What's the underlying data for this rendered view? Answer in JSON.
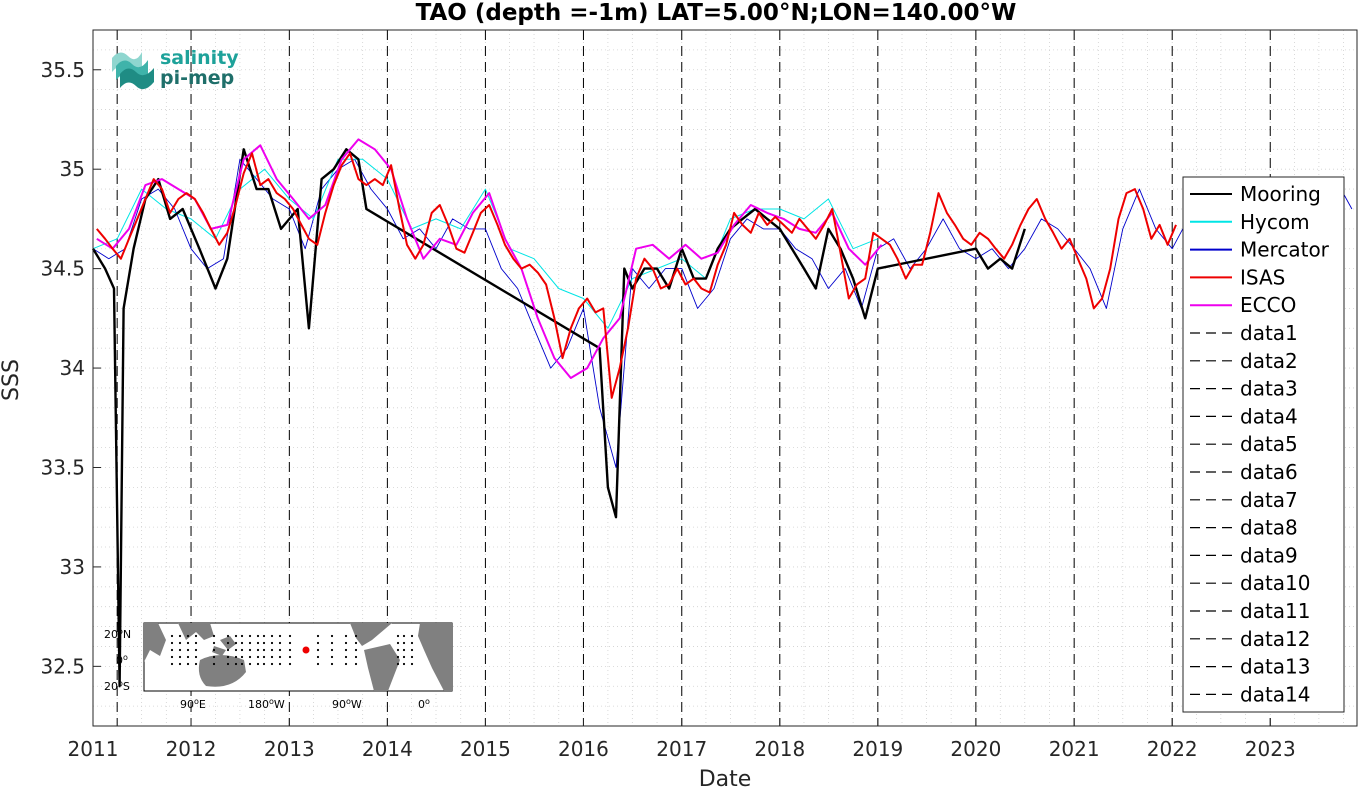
{
  "chart_data": {
    "type": "line",
    "title": "TAO (depth =-1m) LAT=5.00°N;LON=140.00°W",
    "xlabel": "Date",
    "ylabel": "SSS",
    "xlim": [
      "2011-01-01",
      "2023-11-20"
    ],
    "ylim": [
      32.2,
      35.7
    ],
    "x_ticks": [
      "2011",
      "2012",
      "2013",
      "2014",
      "2015",
      "2016",
      "2017",
      "2018",
      "2019",
      "2020",
      "2021",
      "2022",
      "2023"
    ],
    "y_ticks": [
      "32.5",
      "33",
      "33.5",
      "34",
      "34.5",
      "35",
      "35.5"
    ],
    "grid": "dotted minor grid",
    "legend_position": "right",
    "vertical_dashed_lines_at": [
      "2011-04-01",
      "2012-01-01",
      "2013-01-01",
      "2014-01-01",
      "2015-01-01",
      "2016-01-01",
      "2017-01-01",
      "2018-01-01",
      "2019-01-01",
      "2020-01-01",
      "2021-01-01",
      "2022-01-01",
      "2023-01-01"
    ],
    "series": [
      {
        "name": "Mooring",
        "color": "#000000",
        "x": [
          "2011-01-01",
          "2011-02-15",
          "2011-03-20",
          "2011-04-10",
          "2011-04-25",
          "2011-06-01",
          "2011-07-15",
          "2011-09-01",
          "2011-10-15",
          "2011-12-01",
          "2012-02-01",
          "2012-04-01",
          "2012-05-15",
          "2012-07-15",
          "2012-09-01",
          "2012-10-15",
          "2012-12-01",
          "2013-02-01",
          "2013-03-15",
          "2013-05-01",
          "2013-06-15",
          "2013-08-01",
          "2013-09-15",
          "2013-10-15",
          "2016-03-01",
          "2016-04-01",
          "2016-05-01",
          "2016-06-01",
          "2016-07-01",
          "2016-08-15",
          "2016-10-01",
          "2016-11-15",
          "2017-01-01",
          "2017-02-15",
          "2017-04-01",
          "2017-05-15",
          "2017-07-01",
          "2017-08-15",
          "2017-10-01",
          "2017-11-15",
          "2018-01-01",
          "2018-02-15",
          "2018-04-01",
          "2018-05-15",
          "2018-07-01",
          "2018-08-15",
          "2018-10-01",
          "2018-11-15",
          "2019-01-01",
          "2020-01-01",
          "2020-02-15",
          "2020-04-01",
          "2020-05-15",
          "2020-07-01"
        ],
        "y": [
          34.6,
          34.5,
          34.4,
          32.4,
          34.3,
          34.6,
          34.85,
          34.95,
          34.75,
          34.8,
          34.6,
          34.4,
          34.55,
          35.1,
          34.9,
          34.9,
          34.7,
          34.8,
          34.2,
          34.95,
          35.0,
          35.1,
          35.05,
          34.8,
          34.1,
          33.4,
          33.25,
          34.5,
          34.4,
          34.5,
          34.5,
          34.4,
          34.6,
          34.45,
          34.45,
          34.6,
          34.7,
          34.75,
          34.8,
          34.75,
          34.7,
          34.6,
          34.5,
          34.4,
          34.7,
          34.6,
          34.45,
          34.25,
          34.5,
          34.6,
          34.5,
          34.55,
          34.5,
          34.7
        ]
      },
      {
        "name": "Hycom",
        "color": "#00e5e5",
        "x": [
          "2011-01-01",
          "2011-04-01",
          "2011-07-01",
          "2011-10-01",
          "2012-01-01",
          "2012-04-01",
          "2012-07-01",
          "2012-10-01",
          "2013-01-01",
          "2013-04-01",
          "2013-07-01",
          "2013-10-01",
          "2014-01-01",
          "2014-04-01",
          "2014-07-01",
          "2014-10-01",
          "2015-01-01",
          "2015-04-01",
          "2015-07-01",
          "2015-10-01",
          "2016-01-01",
          "2016-04-01",
          "2016-07-01",
          "2016-10-01",
          "2017-01-01",
          "2017-04-01",
          "2017-07-01",
          "2017-10-01",
          "2018-01-01",
          "2018-04-01",
          "2018-07-01",
          "2018-10-01",
          "2019-01-01"
        ],
        "y": [
          34.6,
          34.65,
          34.9,
          34.8,
          34.75,
          34.65,
          34.9,
          35.0,
          34.85,
          34.75,
          35.05,
          35.05,
          34.95,
          34.7,
          34.75,
          34.7,
          34.9,
          34.6,
          34.55,
          34.4,
          34.35,
          34.2,
          34.45,
          34.5,
          34.55,
          34.45,
          34.75,
          34.8,
          34.8,
          34.75,
          34.85,
          34.6,
          34.65
        ]
      },
      {
        "name": "Mercator",
        "color": "#0000cc",
        "x": [
          "2011-01-01",
          "2011-03-01",
          "2011-05-01",
          "2011-07-01",
          "2011-09-01",
          "2011-11-01",
          "2012-01-01",
          "2012-03-01",
          "2012-05-01",
          "2012-07-01",
          "2012-09-01",
          "2012-11-01",
          "2013-01-01",
          "2013-03-01",
          "2013-05-01",
          "2013-07-01",
          "2013-09-01",
          "2013-11-01",
          "2014-01-01",
          "2014-03-01",
          "2014-05-01",
          "2014-07-01",
          "2014-09-01",
          "2014-11-01",
          "2015-01-01",
          "2015-03-01",
          "2015-05-01",
          "2015-07-01",
          "2015-09-01",
          "2015-11-01",
          "2016-01-01",
          "2016-03-01",
          "2016-05-01",
          "2016-07-01",
          "2016-09-01",
          "2016-11-01",
          "2017-01-01",
          "2017-03-01",
          "2017-05-01",
          "2017-07-01",
          "2017-09-01",
          "2017-11-01",
          "2018-01-01",
          "2018-03-01",
          "2018-05-01",
          "2018-07-01",
          "2018-09-01",
          "2018-11-01",
          "2019-01-01",
          "2019-03-01",
          "2019-05-01",
          "2019-07-01",
          "2019-09-01",
          "2019-11-01",
          "2020-01-01",
          "2020-03-01",
          "2020-05-01",
          "2020-07-01",
          "2020-09-01",
          "2020-11-01",
          "2021-01-01",
          "2021-03-01",
          "2021-05-01",
          "2021-07-01",
          "2021-09-01",
          "2021-11-01",
          "2022-01-01",
          "2022-03-01",
          "2022-05-01",
          "2022-07-01",
          "2022-09-01",
          "2022-11-01",
          "2023-01-01",
          "2023-03-01",
          "2023-05-01",
          "2023-07-01",
          "2023-09-01",
          "2023-11-01"
        ],
        "y": [
          34.6,
          34.55,
          34.6,
          34.85,
          34.9,
          34.8,
          34.6,
          34.5,
          34.55,
          35.05,
          34.95,
          34.85,
          34.8,
          34.6,
          34.9,
          35.0,
          35.05,
          34.9,
          34.8,
          34.65,
          34.7,
          34.6,
          34.75,
          34.7,
          34.7,
          34.5,
          34.4,
          34.2,
          34.0,
          34.1,
          34.3,
          33.8,
          33.5,
          34.5,
          34.4,
          34.5,
          34.5,
          34.3,
          34.4,
          34.65,
          34.75,
          34.7,
          34.7,
          34.6,
          34.55,
          34.4,
          34.5,
          34.3,
          34.6,
          34.65,
          34.5,
          34.6,
          34.75,
          34.6,
          34.55,
          34.6,
          34.5,
          34.6,
          34.75,
          34.7,
          34.6,
          34.5,
          34.3,
          34.7,
          34.9,
          34.7,
          34.6,
          34.75,
          34.8,
          34.85,
          34.8,
          34.75,
          34.8,
          34.9,
          34.85,
          34.9,
          34.95,
          34.8
        ]
      },
      {
        "name": "ISAS",
        "color": "#ee0000",
        "x": [
          "2011-01-15",
          "2011-02-15",
          "2011-03-15",
          "2011-04-15",
          "2011-05-15",
          "2011-06-15",
          "2011-07-15",
          "2011-08-15",
          "2011-09-15",
          "2011-10-15",
          "2011-11-15",
          "2011-12-15",
          "2012-01-15",
          "2012-02-15",
          "2012-03-15",
          "2012-04-15",
          "2012-05-15",
          "2012-06-15",
          "2012-07-15",
          "2012-08-15",
          "2012-09-15",
          "2012-10-15",
          "2012-11-15",
          "2012-12-15",
          "2013-01-15",
          "2013-02-15",
          "2013-03-15",
          "2013-04-15",
          "2013-05-15",
          "2013-06-15",
          "2013-07-15",
          "2013-08-15",
          "2013-09-15",
          "2013-10-15",
          "2013-11-15",
          "2013-12-15",
          "2014-01-15",
          "2014-02-15",
          "2014-03-15",
          "2014-04-15",
          "2014-05-15",
          "2014-06-15",
          "2014-07-15",
          "2014-08-15",
          "2014-09-15",
          "2014-10-15",
          "2014-11-15",
          "2014-12-15",
          "2015-01-15",
          "2015-02-15",
          "2015-03-15",
          "2015-04-15",
          "2015-05-15",
          "2015-06-15",
          "2015-07-15",
          "2015-08-15",
          "2015-09-15",
          "2015-10-15",
          "2015-11-15",
          "2015-12-15",
          "2016-01-15",
          "2016-02-15",
          "2016-03-15",
          "2016-04-15",
          "2016-05-15",
          "2016-06-15",
          "2016-07-15",
          "2016-08-15",
          "2016-09-15",
          "2016-10-15",
          "2016-11-15",
          "2016-12-15",
          "2017-01-15",
          "2017-02-15",
          "2017-03-15",
          "2017-04-15",
          "2017-05-15",
          "2017-06-15",
          "2017-07-15",
          "2017-08-15",
          "2017-09-15",
          "2017-10-15",
          "2017-11-15",
          "2017-12-15",
          "2018-01-15",
          "2018-02-15",
          "2018-03-15",
          "2018-04-15",
          "2018-05-15",
          "2018-06-15",
          "2018-07-15",
          "2018-08-15",
          "2018-09-15",
          "2018-10-15",
          "2018-11-15",
          "2018-12-15",
          "2019-01-15",
          "2019-02-15",
          "2019-03-15",
          "2019-04-15",
          "2019-05-15",
          "2019-06-15",
          "2019-07-15",
          "2019-08-15",
          "2019-09-15",
          "2019-10-15",
          "2019-11-15",
          "2019-12-15",
          "2020-01-15",
          "2020-02-15",
          "2020-03-15",
          "2020-04-15",
          "2020-05-15",
          "2020-06-15",
          "2020-07-15",
          "2020-08-15",
          "2020-09-15",
          "2020-10-15",
          "2020-11-15",
          "2020-12-15",
          "2021-01-15",
          "2021-02-15",
          "2021-03-15",
          "2021-04-15",
          "2021-05-15",
          "2021-06-15",
          "2021-07-15",
          "2021-08-15",
          "2021-09-15",
          "2021-10-15",
          "2021-11-15",
          "2021-12-15",
          "2022-01-15"
        ],
        "y": [
          34.7,
          34.65,
          34.6,
          34.55,
          34.65,
          34.75,
          34.85,
          34.95,
          34.9,
          34.78,
          34.85,
          34.88,
          34.85,
          34.78,
          34.7,
          34.62,
          34.68,
          34.82,
          34.98,
          35.08,
          34.92,
          34.95,
          34.88,
          34.85,
          34.8,
          34.72,
          34.65,
          34.62,
          34.78,
          34.92,
          35.02,
          35.08,
          34.95,
          34.92,
          34.95,
          34.92,
          35.02,
          34.8,
          34.62,
          34.55,
          34.62,
          34.78,
          34.82,
          34.72,
          34.6,
          34.58,
          34.68,
          34.78,
          34.82,
          34.72,
          34.62,
          34.55,
          34.5,
          34.52,
          34.48,
          34.42,
          34.25,
          34.05,
          34.2,
          34.3,
          34.35,
          34.28,
          34.3,
          33.85,
          34.0,
          34.2,
          34.45,
          34.55,
          34.5,
          34.4,
          34.42,
          34.5,
          34.42,
          34.45,
          34.4,
          34.38,
          34.52,
          34.62,
          34.78,
          34.72,
          34.68,
          34.78,
          34.72,
          34.76,
          34.72,
          34.68,
          34.75,
          34.7,
          34.65,
          34.72,
          34.8,
          34.58,
          34.35,
          34.42,
          34.45,
          34.68,
          34.65,
          34.62,
          34.55,
          34.45,
          34.52,
          34.52,
          34.68,
          34.88,
          34.78,
          34.72,
          34.65,
          34.62,
          34.68,
          34.65,
          34.6,
          34.55,
          34.62,
          34.72,
          34.8,
          34.85,
          34.75,
          34.68,
          34.6,
          34.65,
          34.55,
          34.45,
          34.3,
          34.35,
          34.5,
          34.75,
          34.88,
          34.9,
          34.8,
          34.65,
          34.72,
          34.62,
          34.72
        ]
      },
      {
        "name": "ECCO",
        "color": "#ee00ee",
        "x": [
          "2011-01-15",
          "2011-03-15",
          "2011-05-15",
          "2011-07-15",
          "2011-09-15",
          "2011-11-15",
          "2012-01-15",
          "2012-03-15",
          "2012-05-15",
          "2012-07-15",
          "2012-09-15",
          "2012-11-15",
          "2013-01-15",
          "2013-03-15",
          "2013-05-15",
          "2013-07-15",
          "2013-09-15",
          "2013-11-15",
          "2014-01-15",
          "2014-03-15",
          "2014-05-15",
          "2014-07-15",
          "2014-09-15",
          "2014-11-15",
          "2015-01-15",
          "2015-03-15",
          "2015-05-15",
          "2015-07-15",
          "2015-09-15",
          "2015-11-15",
          "2016-01-15",
          "2016-03-15",
          "2016-05-15",
          "2016-07-15",
          "2016-09-15",
          "2016-11-15",
          "2017-01-15",
          "2017-03-15",
          "2017-05-15",
          "2017-07-15",
          "2017-09-15",
          "2017-11-15",
          "2018-01-15",
          "2018-03-15",
          "2018-05-15",
          "2018-07-15",
          "2018-09-15",
          "2018-11-15",
          "2019-01-15"
        ],
        "y": [
          34.65,
          34.6,
          34.7,
          34.92,
          34.95,
          34.9,
          34.85,
          34.7,
          34.72,
          35.05,
          35.12,
          34.95,
          34.85,
          34.75,
          34.82,
          35.05,
          35.15,
          35.1,
          35.0,
          34.75,
          34.55,
          34.65,
          34.62,
          34.78,
          34.88,
          34.65,
          34.5,
          34.25,
          34.05,
          33.95,
          34.0,
          34.15,
          34.25,
          34.6,
          34.62,
          34.55,
          34.62,
          34.55,
          34.58,
          34.72,
          34.82,
          34.78,
          34.75,
          34.7,
          34.68,
          34.78,
          34.6,
          34.52,
          34.62
        ]
      },
      {
        "name": "data1",
        "color": "#000000",
        "x": [
          "2011-04-01",
          "2011-04-01"
        ],
        "y": [
          32.2,
          35.7
        ]
      },
      {
        "name": "data2",
        "color": "#000000",
        "x": [
          "2012-01-01",
          "2012-01-01"
        ],
        "y": [
          32.2,
          35.7
        ]
      },
      {
        "name": "data3",
        "color": "#000000",
        "x": [
          "2013-01-01",
          "2013-01-01"
        ],
        "y": [
          32.2,
          35.7
        ]
      },
      {
        "name": "data4",
        "color": "#000000",
        "x": [
          "2014-01-01",
          "2014-01-01"
        ],
        "y": [
          32.2,
          35.7
        ]
      },
      {
        "name": "data5",
        "color": "#000000",
        "x": [
          "2015-01-01",
          "2015-01-01"
        ],
        "y": [
          32.2,
          35.7
        ]
      },
      {
        "name": "data6",
        "color": "#000000",
        "x": [
          "2016-01-01",
          "2016-01-01"
        ],
        "y": [
          32.2,
          35.7
        ]
      },
      {
        "name": "data7",
        "color": "#000000",
        "x": [
          "2017-01-01",
          "2017-01-01"
        ],
        "y": [
          32.2,
          35.7
        ]
      },
      {
        "name": "data8",
        "color": "#000000",
        "x": [
          "2018-01-01",
          "2018-01-01"
        ],
        "y": [
          32.2,
          35.7
        ]
      },
      {
        "name": "data9",
        "color": "#000000",
        "x": [
          "2019-01-01",
          "2019-01-01"
        ],
        "y": [
          32.2,
          35.7
        ]
      },
      {
        "name": "data10",
        "color": "#000000",
        "x": [
          "2020-01-01",
          "2020-01-01"
        ],
        "y": [
          32.2,
          35.7
        ]
      },
      {
        "name": "data11",
        "color": "#000000",
        "x": [
          "2021-01-01",
          "2021-01-01"
        ],
        "y": [
          32.2,
          35.7
        ]
      },
      {
        "name": "data12",
        "color": "#000000",
        "x": [
          "2022-01-01",
          "2022-01-01"
        ],
        "y": [
          32.2,
          35.7
        ]
      },
      {
        "name": "data13",
        "color": "#000000",
        "x": [
          "2023-01-01",
          "2023-01-01"
        ],
        "y": [
          32.2,
          35.7
        ]
      },
      {
        "name": "data14",
        "color": "#000000",
        "x": [],
        "y": []
      }
    ]
  },
  "logo": {
    "line1": "salinity",
    "line2": "pi-mep",
    "colors": [
      "#1ea29a",
      "#1f6f6a"
    ]
  },
  "inset_map": {
    "lat_labels": [
      "20",
      "0",
      "20"
    ],
    "lat_suffixes": [
      "N",
      "",
      "S"
    ],
    "lon_labels": [
      "90",
      "180",
      "90",
      "0"
    ],
    "lon_suffixes": [
      "E",
      "W",
      "W",
      ""
    ],
    "marker_color": "#ee0000",
    "land_color": "#808080"
  }
}
